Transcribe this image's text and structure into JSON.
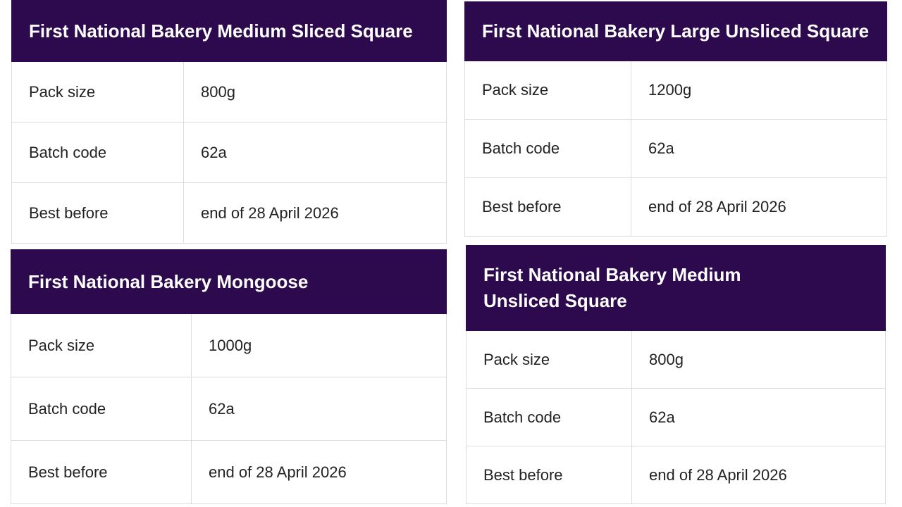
{
  "cards": [
    {
      "title": "First National Bakery Medium Sliced Square",
      "rows": [
        [
          "Pack size",
          "800g"
        ],
        [
          "Batch code",
          "62a"
        ],
        [
          "Best before",
          "end of 28 April 2026"
        ]
      ]
    },
    {
      "title": "First National Bakery Large Unsliced Square",
      "rows": [
        [
          "Pack size",
          "1200g"
        ],
        [
          "Batch code",
          "62a"
        ],
        [
          "Best before",
          "end of 28 April 2026"
        ]
      ]
    },
    {
      "title": "First National Bakery Mongoose",
      "rows": [
        [
          "Pack size",
          "1000g"
        ],
        [
          "Batch code",
          "62a"
        ],
        [
          "Best before",
          "end of 28 April 2026"
        ]
      ]
    },
    {
      "title": "First National Bakery Medium Unsliced Square",
      "rows": [
        [
          "Pack size",
          "800g"
        ],
        [
          "Batch code",
          "62a"
        ],
        [
          "Best before",
          "end of 28 April 2026"
        ]
      ]
    }
  ]
}
